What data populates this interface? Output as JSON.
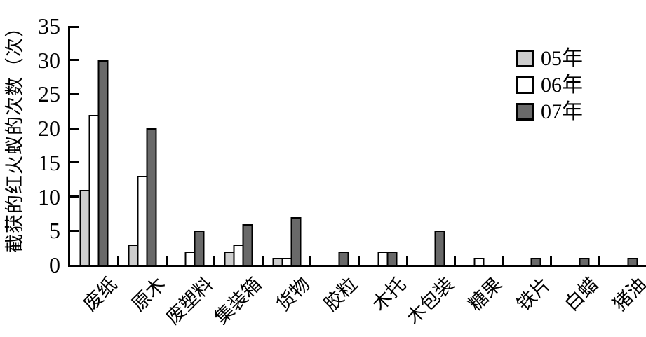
{
  "chart_data": {
    "type": "bar",
    "title": "",
    "ylabel": "截获的红火蚁的次数（次）",
    "xlabel": "",
    "ylim": [
      0,
      35
    ],
    "ytick_interval": 5,
    "yticks": [
      35,
      30,
      25,
      20,
      15,
      10,
      5,
      0
    ],
    "categories": [
      "废纸",
      "原木",
      "废塑料",
      "集装箱",
      "货物",
      "胶粒",
      "木托",
      "木包装",
      "糖果",
      "铁片",
      "白蜡",
      "猪油"
    ],
    "series": [
      {
        "name": "05年",
        "color": "#cdcdcd",
        "values": [
          11,
          3,
          0,
          2,
          1,
          0,
          0,
          0,
          0,
          0,
          0,
          0
        ]
      },
      {
        "name": "06年",
        "color": "#ffffff",
        "values": [
          22,
          13,
          2,
          3,
          1,
          0,
          2,
          0,
          1,
          0,
          0,
          0
        ]
      },
      {
        "name": "07年",
        "color": "#696969",
        "values": [
          30,
          20,
          5,
          6,
          7,
          2,
          2,
          5,
          0,
          1,
          1,
          1
        ]
      }
    ],
    "legend_position": "top-right",
    "grid": false,
    "axis_color": "#000000",
    "background_color": "#ffffff"
  }
}
